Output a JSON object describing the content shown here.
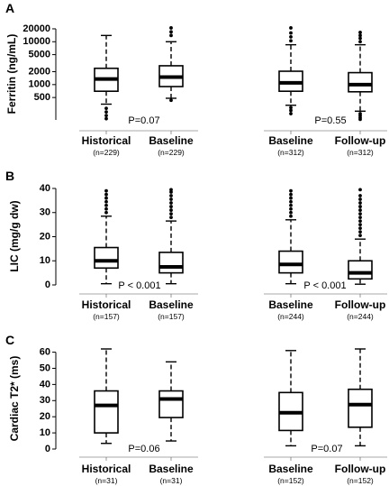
{
  "chart_data": [
    {
      "panel": "A",
      "type": "boxplot",
      "ylabel": "Ferritin (ng/mL)",
      "yscale": "log",
      "ylim": [
        150,
        22000
      ],
      "yticks": [
        20000,
        10000,
        5000,
        2000,
        1000,
        500
      ],
      "ytick_labels": [
        "20000",
        "10000",
        "5000",
        "2000",
        "1000",
        "500"
      ],
      "comparisons": [
        {
          "pvalue": "P=0.07",
          "groups": [
            {
              "label": "Historical",
              "n": "(n=229)",
              "whisker_low": 350,
              "q1": 700,
              "median": 1350,
              "q3": 2400,
              "whisker_high": 14000,
              "outliers": [
                280,
                230,
                190,
                160
              ]
            },
            {
              "label": "Baseline",
              "n": "(n=229)",
              "whisker_low": 480,
              "q1": 900,
              "median": 1500,
              "q3": 2750,
              "whisker_high": 10000,
              "outliers": [
                430,
                14000,
                17000,
                21000
              ]
            }
          ]
        },
        {
          "pvalue": "P=0.55",
          "groups": [
            {
              "label": "Baseline",
              "n": "(n=312)",
              "whisker_low": 330,
              "q1": 700,
              "median": 1100,
              "q3": 2050,
              "whisker_high": 8500,
              "outliers": [
                290,
                250,
                210,
                10500,
                13000,
                16000,
                21000
              ]
            },
            {
              "label": "Follow-up",
              "n": "(n=312)",
              "whisker_low": 240,
              "q1": 680,
              "median": 1000,
              "q3": 1900,
              "whisker_high": 8500,
              "outliers": [
                210,
                190,
                170,
                155,
                10000,
                12000,
                14000,
                16500
              ]
            }
          ]
        }
      ]
    },
    {
      "panel": "B",
      "type": "boxplot",
      "ylabel": "LIC (mg/g dw)",
      "yscale": "linear",
      "ylim": [
        0,
        40
      ],
      "yticks": [
        0,
        10,
        20,
        30,
        40
      ],
      "ytick_labels": [
        "0",
        "10",
        "20",
        "30",
        "40"
      ],
      "comparisons": [
        {
          "pvalue": "P < 0.001",
          "groups": [
            {
              "label": "Historical",
              "n": "(n=157)",
              "whisker_low": 0.5,
              "q1": 7,
              "median": 10,
              "q3": 15.5,
              "whisker_high": 28.5,
              "outliers": [
                30,
                31.5,
                33,
                34.5,
                36,
                37.5,
                39
              ]
            },
            {
              "label": "Baseline",
              "n": "(n=157)",
              "whisker_low": 0.5,
              "q1": 5,
              "median": 7.5,
              "q3": 13.5,
              "whisker_high": 26.5,
              "outliers": [
                28,
                29.5,
                31,
                32.5,
                34,
                35.5,
                37,
                38.5,
                39.5
              ]
            }
          ]
        },
        {
          "pvalue": "P < 0.001",
          "groups": [
            {
              "label": "Baseline",
              "n": "(n=244)",
              "whisker_low": 0.5,
              "q1": 5,
              "median": 8.5,
              "q3": 14,
              "whisker_high": 27,
              "outliers": [
                28.5,
                30,
                31.5,
                33,
                34.5,
                36,
                37.5,
                39
              ]
            },
            {
              "label": "Follow-up",
              "n": "(n=244)",
              "whisker_low": 0.3,
              "q1": 2.5,
              "median": 5,
              "q3": 10,
              "whisker_high": 19,
              "outliers": [
                20.5,
                22,
                23.5,
                25,
                26.5,
                28,
                29.5,
                31,
                32.5,
                34,
                35.5,
                37,
                39.5
              ]
            }
          ]
        }
      ]
    },
    {
      "panel": "C",
      "type": "boxplot",
      "ylabel": "Cardiac T2* (ms)",
      "yscale": "linear",
      "ylim": [
        0,
        62
      ],
      "yticks": [
        0,
        10,
        20,
        30,
        40,
        50,
        60
      ],
      "ytick_labels": [
        "0",
        "10",
        "20",
        "30",
        "40",
        "50",
        "60"
      ],
      "comparisons": [
        {
          "pvalue": "P=0.06",
          "groups": [
            {
              "label": "Historical",
              "n": "(n=31)",
              "whisker_low": 3.5,
              "q1": 10,
              "median": 27,
              "q3": 36,
              "whisker_high": 62,
              "outliers": []
            },
            {
              "label": "Baseline",
              "n": "(n=31)",
              "whisker_low": 5,
              "q1": 19.5,
              "median": 31,
              "q3": 36,
              "whisker_high": 54,
              "outliers": []
            }
          ]
        },
        {
          "pvalue": "P=0.07",
          "groups": [
            {
              "label": "Baseline",
              "n": "(n=152)",
              "whisker_low": 2,
              "q1": 11.5,
              "median": 22.5,
              "q3": 35,
              "whisker_high": 61,
              "outliers": []
            },
            {
              "label": "Follow-up",
              "n": "(n=152)",
              "whisker_low": 2,
              "q1": 13.5,
              "median": 27.5,
              "q3": 37,
              "whisker_high": 62,
              "outliers": []
            }
          ]
        }
      ]
    }
  ]
}
